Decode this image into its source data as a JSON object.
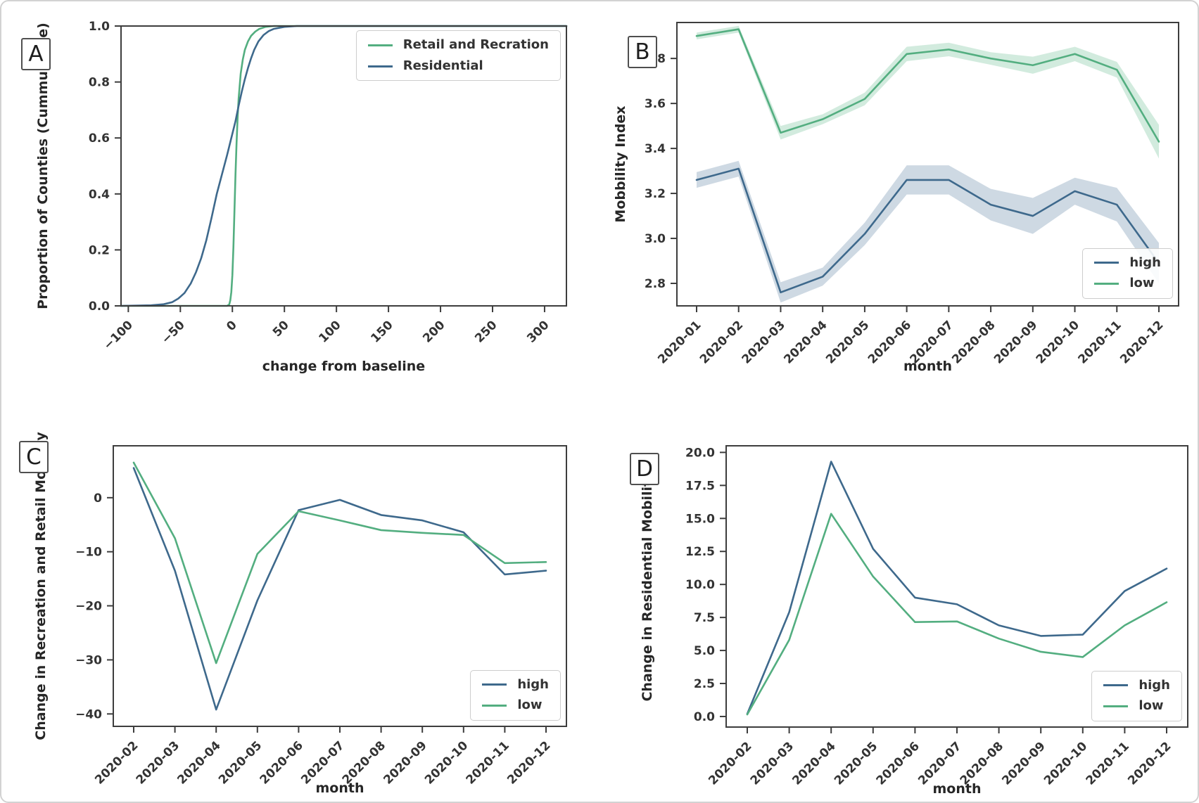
{
  "colors": {
    "high": "#3e698c",
    "low": "#53ae80",
    "band_high": "rgba(78,118,154,0.28)",
    "band_low": "rgba(105,190,145,0.30)",
    "spine": "#3d3d3d",
    "tick_text": "#333333",
    "label_text": "#262626"
  },
  "chart_data": [
    {
      "panel_label": "A",
      "type": "line",
      "xlabel": "change from baseline",
      "ylabel": "Proportion of Counties (Cummulative)",
      "x_type": "numeric",
      "xlim": [
        -107,
        321
      ],
      "ylim": [
        0,
        1.0
      ],
      "xtick_values": [
        -100,
        -50,
        0,
        50,
        100,
        150,
        200,
        250,
        300
      ],
      "xtick_labels": [
        "−100",
        "−50",
        "0",
        "50",
        "100",
        "150",
        "200",
        "250",
        "300"
      ],
      "ytick_values": [
        0.0,
        0.2,
        0.4,
        0.6,
        0.8,
        1.0
      ],
      "ytick_labels": [
        "0.0",
        "0.2",
        "0.4",
        "0.6",
        "0.8",
        "1.0"
      ],
      "grid": false,
      "legend": {
        "position": "top-right",
        "items": [
          {
            "key": "retail",
            "label": "Retail and Recration",
            "color": "low"
          },
          {
            "key": "residential",
            "label": "Residential",
            "color": "high"
          }
        ]
      },
      "series": [
        {
          "name": "Retail and Recration",
          "color": "low",
          "points": [
            [
              -107,
              0
            ],
            [
              -5,
              0
            ],
            [
              -3,
              0.005
            ],
            [
              -2,
              0.02
            ],
            [
              -1,
              0.05
            ],
            [
              0,
              0.11
            ],
            [
              1,
              0.21
            ],
            [
              2,
              0.34
            ],
            [
              3,
              0.47
            ],
            [
              4,
              0.58
            ],
            [
              5,
              0.67
            ],
            [
              6,
              0.74
            ],
            [
              8,
              0.83
            ],
            [
              10,
              0.88
            ],
            [
              12,
              0.915
            ],
            [
              15,
              0.945
            ],
            [
              18,
              0.965
            ],
            [
              22,
              0.98
            ],
            [
              26,
              0.99
            ],
            [
              32,
              0.997
            ],
            [
              40,
              1.0
            ],
            [
              321,
              1.0
            ]
          ]
        },
        {
          "name": "Residential",
          "color": "high",
          "points": [
            [
              -107,
              0
            ],
            [
              -78,
              0.002
            ],
            [
              -66,
              0.006
            ],
            [
              -58,
              0.013
            ],
            [
              -52,
              0.026
            ],
            [
              -46,
              0.046
            ],
            [
              -40,
              0.08
            ],
            [
              -35,
              0.12
            ],
            [
              -30,
              0.17
            ],
            [
              -25,
              0.235
            ],
            [
              -20,
              0.315
            ],
            [
              -15,
              0.4
            ],
            [
              -10,
              0.47
            ],
            [
              -5,
              0.54
            ],
            [
              0,
              0.615
            ],
            [
              3,
              0.66
            ],
            [
              6,
              0.715
            ],
            [
              9,
              0.765
            ],
            [
              12,
              0.81
            ],
            [
              15,
              0.85
            ],
            [
              18,
              0.885
            ],
            [
              21,
              0.915
            ],
            [
              25,
              0.945
            ],
            [
              30,
              0.968
            ],
            [
              35,
              0.982
            ],
            [
              40,
              0.99
            ],
            [
              50,
              0.997
            ],
            [
              62,
              1.0
            ],
            [
              321,
              1.0
            ]
          ]
        }
      ],
      "render": {
        "l": 170,
        "t": 35,
        "r": 49,
        "b": 138,
        "ylabel_x": 65,
        "xlabel_dy": 92
      }
    },
    {
      "panel_label": "B",
      "type": "line",
      "xlabel": "month",
      "ylabel": "Mobbility Index",
      "x_type": "category",
      "categories": [
        "2020-01",
        "2020-02",
        "2020-03",
        "2020-04",
        "2020-05",
        "2020-06",
        "2020-07",
        "2020-08",
        "2020-09",
        "2020-10",
        "2020-11",
        "2020-12"
      ],
      "ylim": [
        2.7,
        3.96
      ],
      "ytick_values": [
        2.8,
        3.0,
        3.2,
        3.4,
        3.6,
        3.8
      ],
      "ytick_labels": [
        "2.8",
        "3.0",
        "3.2",
        "3.4",
        "3.6",
        "3.8"
      ],
      "grid": false,
      "legend": {
        "position": "bottom-right",
        "items": [
          {
            "key": "high",
            "label": "high",
            "color": "high"
          },
          {
            "key": "low",
            "label": "low",
            "color": "low"
          }
        ]
      },
      "series": [
        {
          "name": "high",
          "color": "high",
          "band_color": "band_high",
          "values": [
            3.26,
            3.31,
            2.76,
            2.83,
            3.02,
            3.26,
            3.26,
            3.15,
            3.1,
            3.21,
            3.15,
            2.89
          ],
          "band_delta": [
            0.035,
            0.035,
            0.045,
            0.04,
            0.05,
            0.065,
            0.065,
            0.07,
            0.08,
            0.06,
            0.075,
            0.09
          ]
        },
        {
          "name": "low",
          "color": "low",
          "band_color": "band_low",
          "values": [
            3.9,
            3.93,
            3.47,
            3.53,
            3.62,
            3.82,
            3.84,
            3.8,
            3.77,
            3.82,
            3.75,
            3.43
          ],
          "band_delta": [
            0.015,
            0.015,
            0.03,
            0.022,
            0.028,
            0.032,
            0.03,
            0.028,
            0.038,
            0.032,
            0.035,
            0.075
          ]
        }
      ],
      "render": {
        "l": 108,
        "t": 30,
        "r": 31,
        "b": 138,
        "xpad": 28,
        "ylabel_x": 34,
        "xlabel_dy": 92
      }
    },
    {
      "panel_label": "C",
      "type": "line",
      "xlabel": "month",
      "ylabel": "Change in Recreation and Retail Mobility",
      "x_type": "category",
      "categories": [
        "2020-02",
        "2020-03",
        "2020-04",
        "2020-05",
        "2020-06",
        "2020-07",
        "2020-08",
        "2020-09",
        "2020-10",
        "2020-11",
        "2020-12"
      ],
      "ylim": [
        -42.3,
        9.6
      ],
      "ytick_values": [
        0,
        -10,
        -20,
        -30,
        -40
      ],
      "ytick_labels": [
        "0",
        "−10",
        "−20",
        "−30",
        "−40"
      ],
      "grid": false,
      "legend": {
        "position": "bottom-right",
        "items": [
          {
            "key": "high",
            "label": "high",
            "color": "high"
          },
          {
            "key": "low",
            "label": "low",
            "color": "low"
          }
        ]
      },
      "series": [
        {
          "name": "high",
          "color": "high",
          "values": [
            5.5,
            -13.5,
            -39.2,
            -19.0,
            -2.3,
            -0.4,
            -3.2,
            -4.2,
            -6.4,
            -14.2,
            -13.5
          ]
        },
        {
          "name": "low",
          "color": "low",
          "values": [
            6.5,
            -7.5,
            -30.6,
            -10.4,
            -2.5,
            -4.2,
            -6.0,
            -6.5,
            -6.9,
            -12.1,
            -11.9
          ]
        }
      ],
      "render": {
        "l": 159,
        "t": 61,
        "r": 49,
        "b": 111,
        "xpad": 29,
        "ylabel_x": 62,
        "xlabel_dy": 94
      }
    },
    {
      "panel_label": "D",
      "type": "line",
      "xlabel": "month",
      "ylabel": "Change in Residential Mobility",
      "x_type": "category",
      "categories": [
        "2020-02",
        "2020-03",
        "2020-04",
        "2020-05",
        "2020-06",
        "2020-07",
        "2020-08",
        "2020-09",
        "2020-10",
        "2020-11",
        "2020-12"
      ],
      "ylim": [
        -0.8,
        20.5
      ],
      "ytick_values": [
        0.0,
        2.5,
        5.0,
        7.5,
        10.0,
        12.5,
        15.0,
        17.5,
        20.0
      ],
      "ytick_labels": [
        "0.0",
        "2.5",
        "5.0",
        "7.5",
        "10.0",
        "12.5",
        "15.0",
        "17.5",
        "20.0"
      ],
      "grid": false,
      "legend": {
        "position": "bottom-right",
        "items": [
          {
            "key": "high",
            "label": "high",
            "color": "high"
          },
          {
            "key": "low",
            "label": "low",
            "color": "low"
          }
        ]
      },
      "series": [
        {
          "name": "high",
          "color": "high",
          "values": [
            0.2,
            7.9,
            19.3,
            12.7,
            9.0,
            8.5,
            6.9,
            6.1,
            6.2,
            9.5,
            11.2
          ]
        },
        {
          "name": "low",
          "color": "low",
          "values": [
            0.15,
            5.8,
            15.35,
            10.6,
            7.15,
            7.2,
            5.9,
            4.9,
            4.5,
            6.9,
            8.65
          ]
        }
      ],
      "render": {
        "l": 178,
        "t": 61,
        "r": 18,
        "b": 110,
        "xpad": 30,
        "ylabel_x": 72,
        "xlabel_dy": 94
      }
    }
  ]
}
